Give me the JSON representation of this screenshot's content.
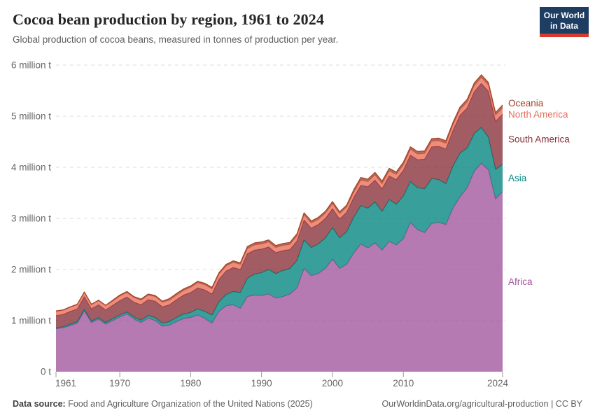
{
  "header": {
    "title": "Cocoa bean production by region, 1961 to 2024",
    "subtitle": "Global production of cocoa beans, measured in tonnes of production per year.",
    "logo": {
      "line1": "Our World",
      "line2": "in Data",
      "bg": "#1d3d63",
      "accent": "#d73b2f"
    }
  },
  "footer": {
    "source_label": "Data source:",
    "source_text": "Food and Agriculture Organization of the United Nations (2025)",
    "credit_link": "OurWorldinData.org/agricultural-production",
    "separator": "|",
    "license": "CC BY"
  },
  "chart_data": {
    "type": "area",
    "stacked": true,
    "title": "Cocoa bean production by region, 1961 to 2024",
    "xlabel": "",
    "ylabel": "",
    "unit": "tonnes of production per year",
    "values_unit": "million tonnes",
    "grid": "horizontal-dashed",
    "legend_position": "inline-right",
    "xlim": [
      1961,
      2024
    ],
    "ylim": [
      0,
      6
    ],
    "xticks": [
      1961,
      1970,
      1980,
      1990,
      2000,
      2010,
      2024
    ],
    "ytick_values": [
      0,
      1,
      2,
      3,
      4,
      5,
      6
    ],
    "ytick_labels": [
      "0 t",
      "1 million t",
      "2 million t",
      "3 million t",
      "4 million t",
      "5 million t",
      "6 million t"
    ],
    "x": [
      1961,
      1962,
      1963,
      1964,
      1965,
      1966,
      1967,
      1968,
      1969,
      1970,
      1971,
      1972,
      1973,
      1974,
      1975,
      1976,
      1977,
      1978,
      1979,
      1980,
      1981,
      1982,
      1983,
      1984,
      1985,
      1986,
      1987,
      1988,
      1989,
      1990,
      1991,
      1992,
      1993,
      1994,
      1995,
      1996,
      1997,
      1998,
      1999,
      2000,
      2001,
      2002,
      2003,
      2004,
      2005,
      2006,
      2007,
      2008,
      2009,
      2010,
      2011,
      2012,
      2013,
      2014,
      2015,
      2016,
      2017,
      2018,
      2019,
      2020,
      2021,
      2022,
      2023,
      2024
    ],
    "series": [
      {
        "name": "Africa",
        "color": "#a2559c",
        "values": [
          0.84,
          0.86,
          0.9,
          0.95,
          1.19,
          0.96,
          1.03,
          0.93,
          1.0,
          1.07,
          1.13,
          1.03,
          0.96,
          1.05,
          1.0,
          0.89,
          0.91,
          0.98,
          1.04,
          1.06,
          1.11,
          1.04,
          0.95,
          1.18,
          1.29,
          1.31,
          1.24,
          1.47,
          1.5,
          1.49,
          1.52,
          1.44,
          1.47,
          1.52,
          1.64,
          2.02,
          1.88,
          1.92,
          2.02,
          2.2,
          2.02,
          2.1,
          2.32,
          2.5,
          2.42,
          2.52,
          2.38,
          2.55,
          2.48,
          2.6,
          2.92,
          2.78,
          2.72,
          2.9,
          2.92,
          2.88,
          3.2,
          3.42,
          3.6,
          3.92,
          4.08,
          3.95,
          3.38,
          3.52
        ]
      },
      {
        "name": "Asia",
        "color": "#00847e",
        "values": [
          0.02,
          0.02,
          0.03,
          0.03,
          0.03,
          0.03,
          0.03,
          0.03,
          0.04,
          0.04,
          0.04,
          0.04,
          0.05,
          0.05,
          0.06,
          0.06,
          0.07,
          0.08,
          0.09,
          0.1,
          0.12,
          0.14,
          0.16,
          0.19,
          0.22,
          0.26,
          0.31,
          0.36,
          0.41,
          0.45,
          0.48,
          0.48,
          0.51,
          0.5,
          0.54,
          0.56,
          0.55,
          0.58,
          0.6,
          0.62,
          0.6,
          0.64,
          0.7,
          0.75,
          0.78,
          0.8,
          0.76,
          0.82,
          0.8,
          0.84,
          0.8,
          0.82,
          0.86,
          0.88,
          0.84,
          0.8,
          0.82,
          0.86,
          0.78,
          0.74,
          0.7,
          0.64,
          0.58,
          0.54
        ]
      },
      {
        "name": "South America",
        "color": "#883039",
        "values": [
          0.24,
          0.24,
          0.25,
          0.25,
          0.25,
          0.24,
          0.25,
          0.25,
          0.26,
          0.28,
          0.29,
          0.29,
          0.3,
          0.31,
          0.32,
          0.32,
          0.33,
          0.35,
          0.37,
          0.39,
          0.41,
          0.42,
          0.41,
          0.44,
          0.46,
          0.47,
          0.45,
          0.48,
          0.47,
          0.46,
          0.44,
          0.41,
          0.39,
          0.37,
          0.38,
          0.39,
          0.38,
          0.38,
          0.38,
          0.37,
          0.37,
          0.38,
          0.39,
          0.4,
          0.42,
          0.43,
          0.44,
          0.46,
          0.48,
          0.5,
          0.52,
          0.55,
          0.58,
          0.62,
          0.65,
          0.68,
          0.7,
          0.74,
          0.78,
          0.82,
          0.86,
          0.9,
          0.94,
          0.98
        ]
      },
      {
        "name": "North America",
        "color": "#e56e5a",
        "values": [
          0.08,
          0.08,
          0.08,
          0.08,
          0.08,
          0.08,
          0.08,
          0.08,
          0.08,
          0.09,
          0.09,
          0.09,
          0.09,
          0.09,
          0.09,
          0.09,
          0.09,
          0.09,
          0.09,
          0.1,
          0.1,
          0.1,
          0.1,
          0.1,
          0.1,
          0.1,
          0.1,
          0.1,
          0.1,
          0.1,
          0.1,
          0.1,
          0.1,
          0.1,
          0.1,
          0.1,
          0.1,
          0.1,
          0.1,
          0.1,
          0.1,
          0.1,
          0.1,
          0.1,
          0.1,
          0.1,
          0.1,
          0.1,
          0.1,
          0.11,
          0.11,
          0.11,
          0.11,
          0.11,
          0.11,
          0.11,
          0.11,
          0.11,
          0.12,
          0.12,
          0.12,
          0.12,
          0.12,
          0.12
        ]
      },
      {
        "name": "Oceania",
        "color": "#a04328",
        "values": [
          0.01,
          0.01,
          0.01,
          0.01,
          0.01,
          0.01,
          0.01,
          0.01,
          0.02,
          0.02,
          0.02,
          0.02,
          0.02,
          0.02,
          0.02,
          0.02,
          0.03,
          0.03,
          0.03,
          0.03,
          0.03,
          0.03,
          0.03,
          0.03,
          0.03,
          0.03,
          0.03,
          0.04,
          0.04,
          0.04,
          0.04,
          0.04,
          0.04,
          0.04,
          0.04,
          0.04,
          0.04,
          0.04,
          0.04,
          0.04,
          0.04,
          0.04,
          0.05,
          0.05,
          0.05,
          0.05,
          0.05,
          0.05,
          0.05,
          0.05,
          0.05,
          0.05,
          0.05,
          0.05,
          0.05,
          0.05,
          0.05,
          0.05,
          0.05,
          0.05,
          0.05,
          0.05,
          0.05,
          0.06
        ]
      }
    ],
    "style": {
      "fill_opacity": 0.78,
      "gridline_color": "#dcdcdc",
      "axis_text_color": "#666666",
      "tick_color": "#999999"
    }
  }
}
